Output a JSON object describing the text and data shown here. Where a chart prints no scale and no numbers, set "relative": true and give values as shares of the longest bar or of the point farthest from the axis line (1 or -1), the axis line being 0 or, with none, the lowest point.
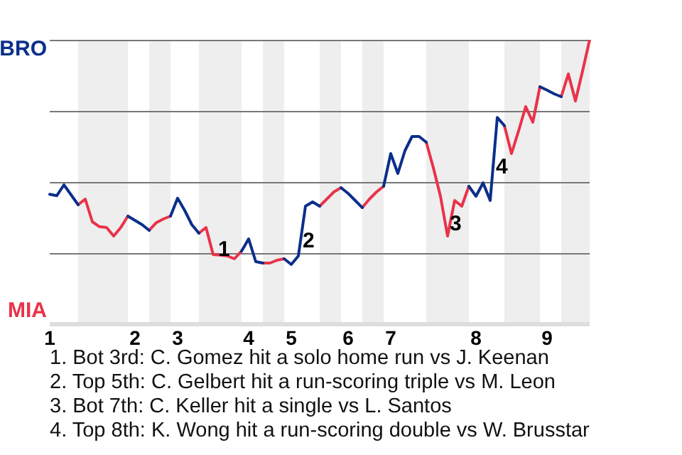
{
  "chart_data": {
    "type": "line",
    "relative": true,
    "categories": [
      "1",
      null,
      null,
      null,
      null,
      null,
      null,
      null,
      null,
      null,
      null,
      null,
      "2",
      null,
      null,
      null,
      null,
      null,
      "3",
      null,
      null,
      null,
      null,
      null,
      null,
      null,
      null,
      null,
      "4",
      null,
      null,
      null,
      null,
      null,
      "5",
      null,
      null,
      null,
      null,
      null,
      null,
      null,
      "6",
      null,
      null,
      null,
      null,
      null,
      "7",
      null,
      null,
      null,
      null,
      null,
      null,
      null,
      null,
      null,
      null,
      null,
      "8",
      null,
      null,
      null,
      null,
      null,
      null,
      null,
      null,
      null,
      "9",
      null,
      null,
      null,
      null,
      null,
      null
    ],
    "grid": "y",
    "marker": "none",
    "line_style": "solid",
    "series": [
      {
        "color": "#0b2f8a",
        "values": [
          0.457,
          0.452,
          0.49,
          0.455,
          0.42,
          null,
          null,
          null,
          null,
          null,
          null,
          0.38,
          0.365,
          0.35,
          0.33,
          null,
          null,
          0.38,
          0.443,
          0.4,
          0.35,
          0.32,
          null,
          null,
          null,
          null,
          null,
          0.257,
          0.3,
          0.22,
          0.215,
          null,
          null,
          0.23,
          0.21,
          0.24,
          0.415,
          0.43,
          0.415,
          null,
          null,
          0.48,
          0.46,
          0.435,
          0.41,
          null,
          null,
          0.485,
          0.6,
          0.53,
          0.61,
          0.66,
          0.66,
          0.64,
          null,
          null,
          null,
          null,
          null,
          0.485,
          0.45,
          0.497,
          0.435,
          0.727,
          0.698,
          null,
          null,
          null,
          null,
          0.835,
          0.823,
          0.81,
          0.8,
          null,
          null,
          null,
          null
        ]
      },
      {
        "color": "#e8334a",
        "values": [
          null,
          null,
          null,
          null,
          0.42,
          0.44,
          0.36,
          0.343,
          0.34,
          0.31,
          0.34,
          0.38,
          null,
          null,
          0.33,
          0.357,
          0.37,
          0.38,
          null,
          null,
          null,
          0.32,
          0.34,
          0.245,
          0.243,
          0.24,
          0.23,
          0.257,
          null,
          null,
          0.215,
          0.215,
          0.225,
          0.23,
          null,
          null,
          null,
          null,
          0.415,
          0.44,
          0.465,
          0.48,
          null,
          null,
          0.41,
          0.44,
          0.465,
          0.485,
          null,
          null,
          null,
          null,
          null,
          0.64,
          0.55,
          0.45,
          0.31,
          0.435,
          0.415,
          0.485,
          null,
          null,
          null,
          null,
          0.698,
          0.6,
          0.68,
          0.765,
          0.71,
          0.835,
          null,
          null,
          0.8,
          0.88,
          0.785,
          0.89,
          1
        ]
      }
    ],
    "annotations": [
      "BRO",
      "MIA",
      "4",
      {
        "text": "1",
        "y": 0.26
      },
      {
        "text": "2",
        "y": 0.29
      },
      {
        "text": "3",
        "y": 0.35
      },
      "1. Bot 3rd: C. Gomez hit a solo home run vs J. Keenan",
      "2. Top 5th: C. Gelbert hit a run-scoring triple vs M. Leon",
      "3. Bot 7th: C. Keller hit a single vs L. Santos",
      "4. Top 8th: K. Wong hit a run-scoring double vs W. Brusstar"
    ]
  }
}
